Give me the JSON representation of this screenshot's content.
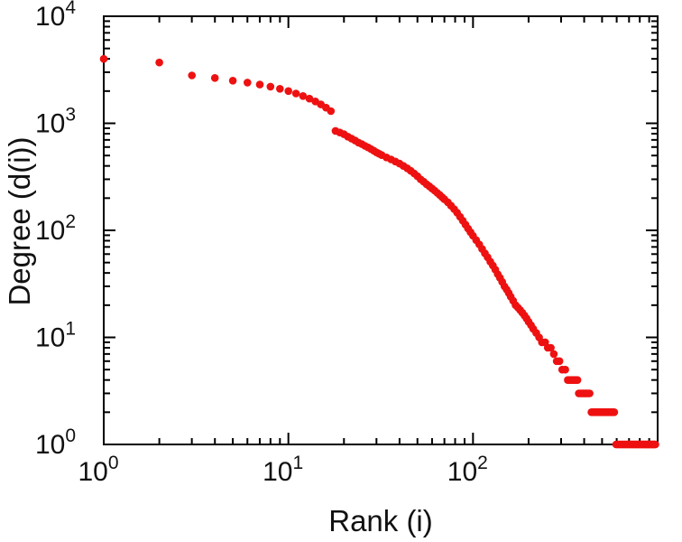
{
  "chart_data": {
    "type": "scatter",
    "title": "",
    "xlabel": "Rank (i)",
    "ylabel": "Degree (d(i))",
    "xscale": "log",
    "yscale": "log",
    "xlim": [
      1,
      1000
    ],
    "ylim": [
      1,
      10000
    ],
    "grid": false,
    "legend": "none",
    "marker_color": "#ee1111",
    "marker_radius": 4.3,
    "frame_color": "#000000",
    "x_axis": {
      "label": "Rank (i)",
      "scale": "log",
      "min_exp": 0,
      "max_exp": 3,
      "labeled_exponents": [
        0,
        1,
        2
      ]
    },
    "y_axis": {
      "label": "Degree (d(i))",
      "scale": "log",
      "min_exp": 0,
      "max_exp": 4,
      "labeled_exponents": [
        0,
        1,
        2,
        3,
        4
      ]
    },
    "points": [
      [
        1,
        4000
      ],
      [
        2,
        3700
      ],
      [
        3,
        2800
      ],
      [
        4,
        2650
      ],
      [
        5,
        2500
      ],
      [
        6,
        2400
      ],
      [
        7,
        2300
      ],
      [
        8,
        2200
      ],
      [
        9,
        2100
      ],
      [
        10,
        2000
      ],
      [
        11,
        1900
      ],
      [
        12,
        1800
      ],
      [
        13,
        1700
      ],
      [
        14,
        1600
      ],
      [
        15,
        1500
      ],
      [
        16,
        1400
      ],
      [
        17,
        1300
      ],
      [
        18,
        850
      ],
      [
        19,
        820
      ],
      [
        20,
        790
      ],
      [
        21,
        750
      ],
      [
        22,
        720
      ],
      [
        23,
        690
      ],
      [
        24,
        660
      ],
      [
        25,
        640
      ],
      [
        26,
        615
      ],
      [
        27,
        595
      ],
      [
        28,
        575
      ],
      [
        29,
        555
      ],
      [
        30,
        535
      ],
      [
        31,
        520
      ],
      [
        32,
        505
      ],
      [
        34,
        480
      ],
      [
        36,
        460
      ],
      [
        38,
        440
      ],
      [
        40,
        420
      ],
      [
        42,
        400
      ],
      [
        44,
        380
      ],
      [
        46,
        360
      ],
      [
        48,
        340
      ],
      [
        50,
        320
      ],
      [
        52,
        300
      ],
      [
        54,
        285
      ],
      [
        56,
        270
      ],
      [
        58,
        258
      ],
      [
        60,
        246
      ],
      [
        62,
        235
      ],
      [
        64,
        224
      ],
      [
        66,
        214
      ],
      [
        68,
        204
      ],
      [
        70,
        195
      ],
      [
        73,
        183
      ],
      [
        76,
        170
      ],
      [
        79,
        158
      ],
      [
        82,
        146
      ],
      [
        85,
        134
      ],
      [
        88,
        123
      ],
      [
        91,
        113
      ],
      [
        94,
        104
      ],
      [
        97,
        96
      ],
      [
        100,
        89
      ],
      [
        104,
        81
      ],
      [
        108,
        74
      ],
      [
        112,
        67
      ],
      [
        116,
        61
      ],
      [
        120,
        56
      ],
      [
        124,
        51
      ],
      [
        128,
        47
      ],
      [
        132,
        43
      ],
      [
        136,
        39
      ],
      [
        140,
        36
      ],
      [
        144,
        33
      ],
      [
        148,
        30
      ],
      [
        152,
        28
      ],
      [
        156,
        26
      ],
      [
        160,
        24
      ],
      [
        165,
        22
      ],
      [
        170,
        20
      ],
      [
        175,
        19
      ],
      [
        180,
        18
      ],
      [
        185,
        17
      ],
      [
        190,
        16
      ],
      [
        195,
        15
      ],
      [
        200,
        14
      ],
      [
        206,
        13
      ],
      [
        212,
        12
      ],
      [
        220,
        11
      ],
      [
        228,
        10
      ],
      [
        236,
        9
      ],
      [
        246,
        9
      ],
      [
        254,
        8
      ],
      [
        264,
        8
      ],
      [
        274,
        7
      ],
      [
        284,
        6
      ],
      [
        294,
        6
      ],
      [
        304,
        5
      ],
      [
        316,
        5
      ]
    ],
    "tail_runs": [
      {
        "degree": 4,
        "from": 326,
        "to": 368,
        "step": 6
      },
      {
        "degree": 3,
        "from": 374,
        "to": 430,
        "step": 6
      },
      {
        "degree": 2,
        "from": 438,
        "to": 586,
        "step": 6
      },
      {
        "degree": 1,
        "from": 596,
        "to": 976,
        "step": 8
      }
    ]
  }
}
